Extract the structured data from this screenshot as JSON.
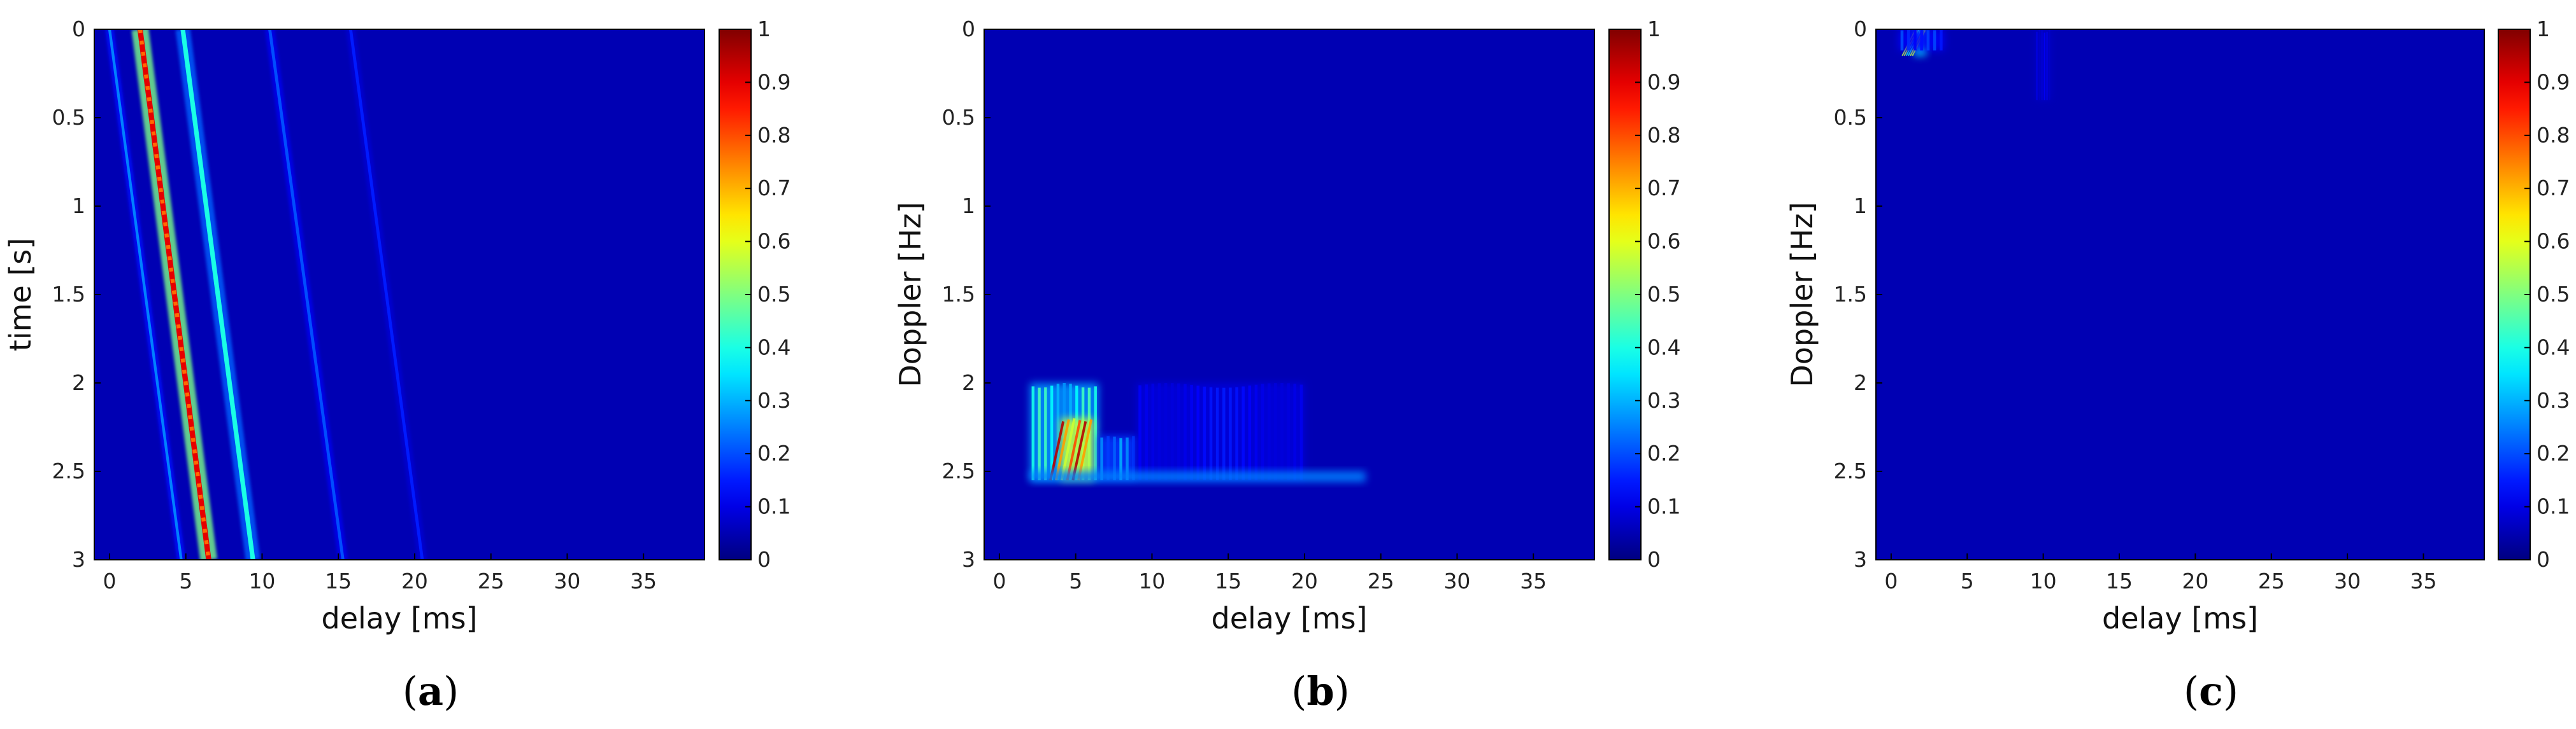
{
  "chart_data": [
    {
      "type": "heatmap",
      "caption": "a",
      "xlabel": "delay [ms]",
      "ylabel": "time [s]",
      "xlim": [
        -1,
        39
      ],
      "ylim": [
        0,
        3
      ],
      "y_reversed": true,
      "xticks": [
        0,
        5,
        10,
        15,
        20,
        25,
        30,
        35
      ],
      "yticks": [
        0,
        0.5,
        1,
        1.5,
        2,
        2.5,
        3
      ],
      "ytick_labels": [
        "0",
        "0.5",
        "1",
        "1.5",
        "2",
        "2.5",
        "3"
      ],
      "colormap": "jet",
      "clim": [
        0,
        1
      ],
      "colorbar_ticks": [
        0,
        0.1,
        0.2,
        0.3,
        0.4,
        0.5,
        0.6,
        0.7,
        0.8,
        0.9,
        1
      ],
      "colorbar_tick_labels": [
        "0",
        "0.1",
        "0.2",
        "0.3",
        "0.4",
        "0.5",
        "0.6",
        "0.7",
        "0.8",
        "0.9",
        "1"
      ],
      "background_value": 0.05,
      "features": [
        {
          "kind": "streak",
          "x0": 0.0,
          "y0": 0,
          "x1": 4.7,
          "y1": 3,
          "intensity": 0.25,
          "width_ms": 0.18
        },
        {
          "kind": "streak",
          "x0": 2.0,
          "y0": 0,
          "x1": 6.5,
          "y1": 3,
          "intensity": 0.9,
          "width_ms": 0.35,
          "dotted": true
        },
        {
          "kind": "streak",
          "x0": 4.8,
          "y0": 0,
          "x1": 9.4,
          "y1": 3,
          "intensity": 0.4,
          "width_ms": 0.3
        },
        {
          "kind": "streak",
          "x0": 10.5,
          "y0": 0,
          "x1": 15.3,
          "y1": 3,
          "intensity": 0.2,
          "width_ms": 0.2
        },
        {
          "kind": "streak",
          "x0": 15.8,
          "y0": 0,
          "x1": 20.5,
          "y1": 3,
          "intensity": 0.15,
          "width_ms": 0.2
        }
      ]
    },
    {
      "type": "heatmap",
      "caption": "b",
      "xlabel": "delay [ms]",
      "ylabel": "Doppler [Hz]",
      "xlim": [
        -1,
        39
      ],
      "ylim": [
        0,
        3
      ],
      "y_reversed": true,
      "xticks": [
        0,
        5,
        10,
        15,
        20,
        25,
        30,
        35
      ],
      "yticks": [
        0,
        0.5,
        1,
        1.5,
        2,
        2.5,
        3
      ],
      "ytick_labels": [
        "0",
        "0.5",
        "1",
        "1.5",
        "2",
        "2.5",
        "3"
      ],
      "colormap": "jet",
      "clim": [
        0,
        1
      ],
      "colorbar_ticks": [
        0,
        0.1,
        0.2,
        0.3,
        0.4,
        0.5,
        0.6,
        0.7,
        0.8,
        0.9,
        1
      ],
      "colorbar_tick_labels": [
        "0",
        "0.1",
        "0.2",
        "0.3",
        "0.4",
        "0.5",
        "0.6",
        "0.7",
        "0.8",
        "0.9",
        "1"
      ],
      "background_value": 0.05,
      "features": [
        {
          "kind": "blob",
          "x0": 2.0,
          "x1": 6.5,
          "y0": 2.0,
          "y1": 2.55,
          "intensity": 0.45
        },
        {
          "kind": "hot",
          "x0": 4.0,
          "x1": 6.2,
          "y0": 2.2,
          "y1": 2.55,
          "intensity": 0.95
        },
        {
          "kind": "blob",
          "x0": 6.5,
          "x1": 9.0,
          "y0": 2.3,
          "y1": 2.55,
          "intensity": 0.3
        },
        {
          "kind": "blob",
          "x0": 9.0,
          "x1": 20.0,
          "y0": 2.0,
          "y1": 2.55,
          "intensity": 0.15
        },
        {
          "kind": "band",
          "x0": 2.0,
          "x1": 24.0,
          "y0": 2.5,
          "y1": 2.56,
          "intensity": 0.25
        }
      ]
    },
    {
      "type": "heatmap",
      "caption": "c",
      "xlabel": "delay [ms]",
      "ylabel": "Doppler [Hz]",
      "xlim": [
        -1,
        39
      ],
      "ylim": [
        0,
        3
      ],
      "y_reversed": true,
      "xticks": [
        0,
        5,
        10,
        15,
        20,
        25,
        30,
        35
      ],
      "yticks": [
        0,
        0.5,
        1,
        1.5,
        2,
        2.5,
        3
      ],
      "ytick_labels": [
        "0",
        "0.5",
        "1",
        "1.5",
        "2",
        "2.5",
        "3"
      ],
      "colormap": "jet",
      "clim": [
        0,
        1
      ],
      "colorbar_ticks": [
        0,
        0.1,
        0.2,
        0.3,
        0.4,
        0.5,
        0.6,
        0.7,
        0.8,
        0.9,
        1
      ],
      "colorbar_tick_labels": [
        "0",
        "0.1",
        "0.2",
        "0.3",
        "0.4",
        "0.5",
        "0.6",
        "0.7",
        "0.8",
        "0.9",
        "1"
      ],
      "background_value": 0.05,
      "features": [
        {
          "kind": "hot",
          "x0": 1.5,
          "x1": 2.3,
          "y0": 0.0,
          "y1": 0.15,
          "intensity": 0.6
        },
        {
          "kind": "blob",
          "x0": 0.5,
          "x1": 3.5,
          "y0": 0.0,
          "y1": 0.12,
          "intensity": 0.2
        },
        {
          "kind": "blob",
          "x0": 9.5,
          "x1": 10.5,
          "y0": 0.0,
          "y1": 0.4,
          "intensity": 0.12
        }
      ]
    }
  ]
}
